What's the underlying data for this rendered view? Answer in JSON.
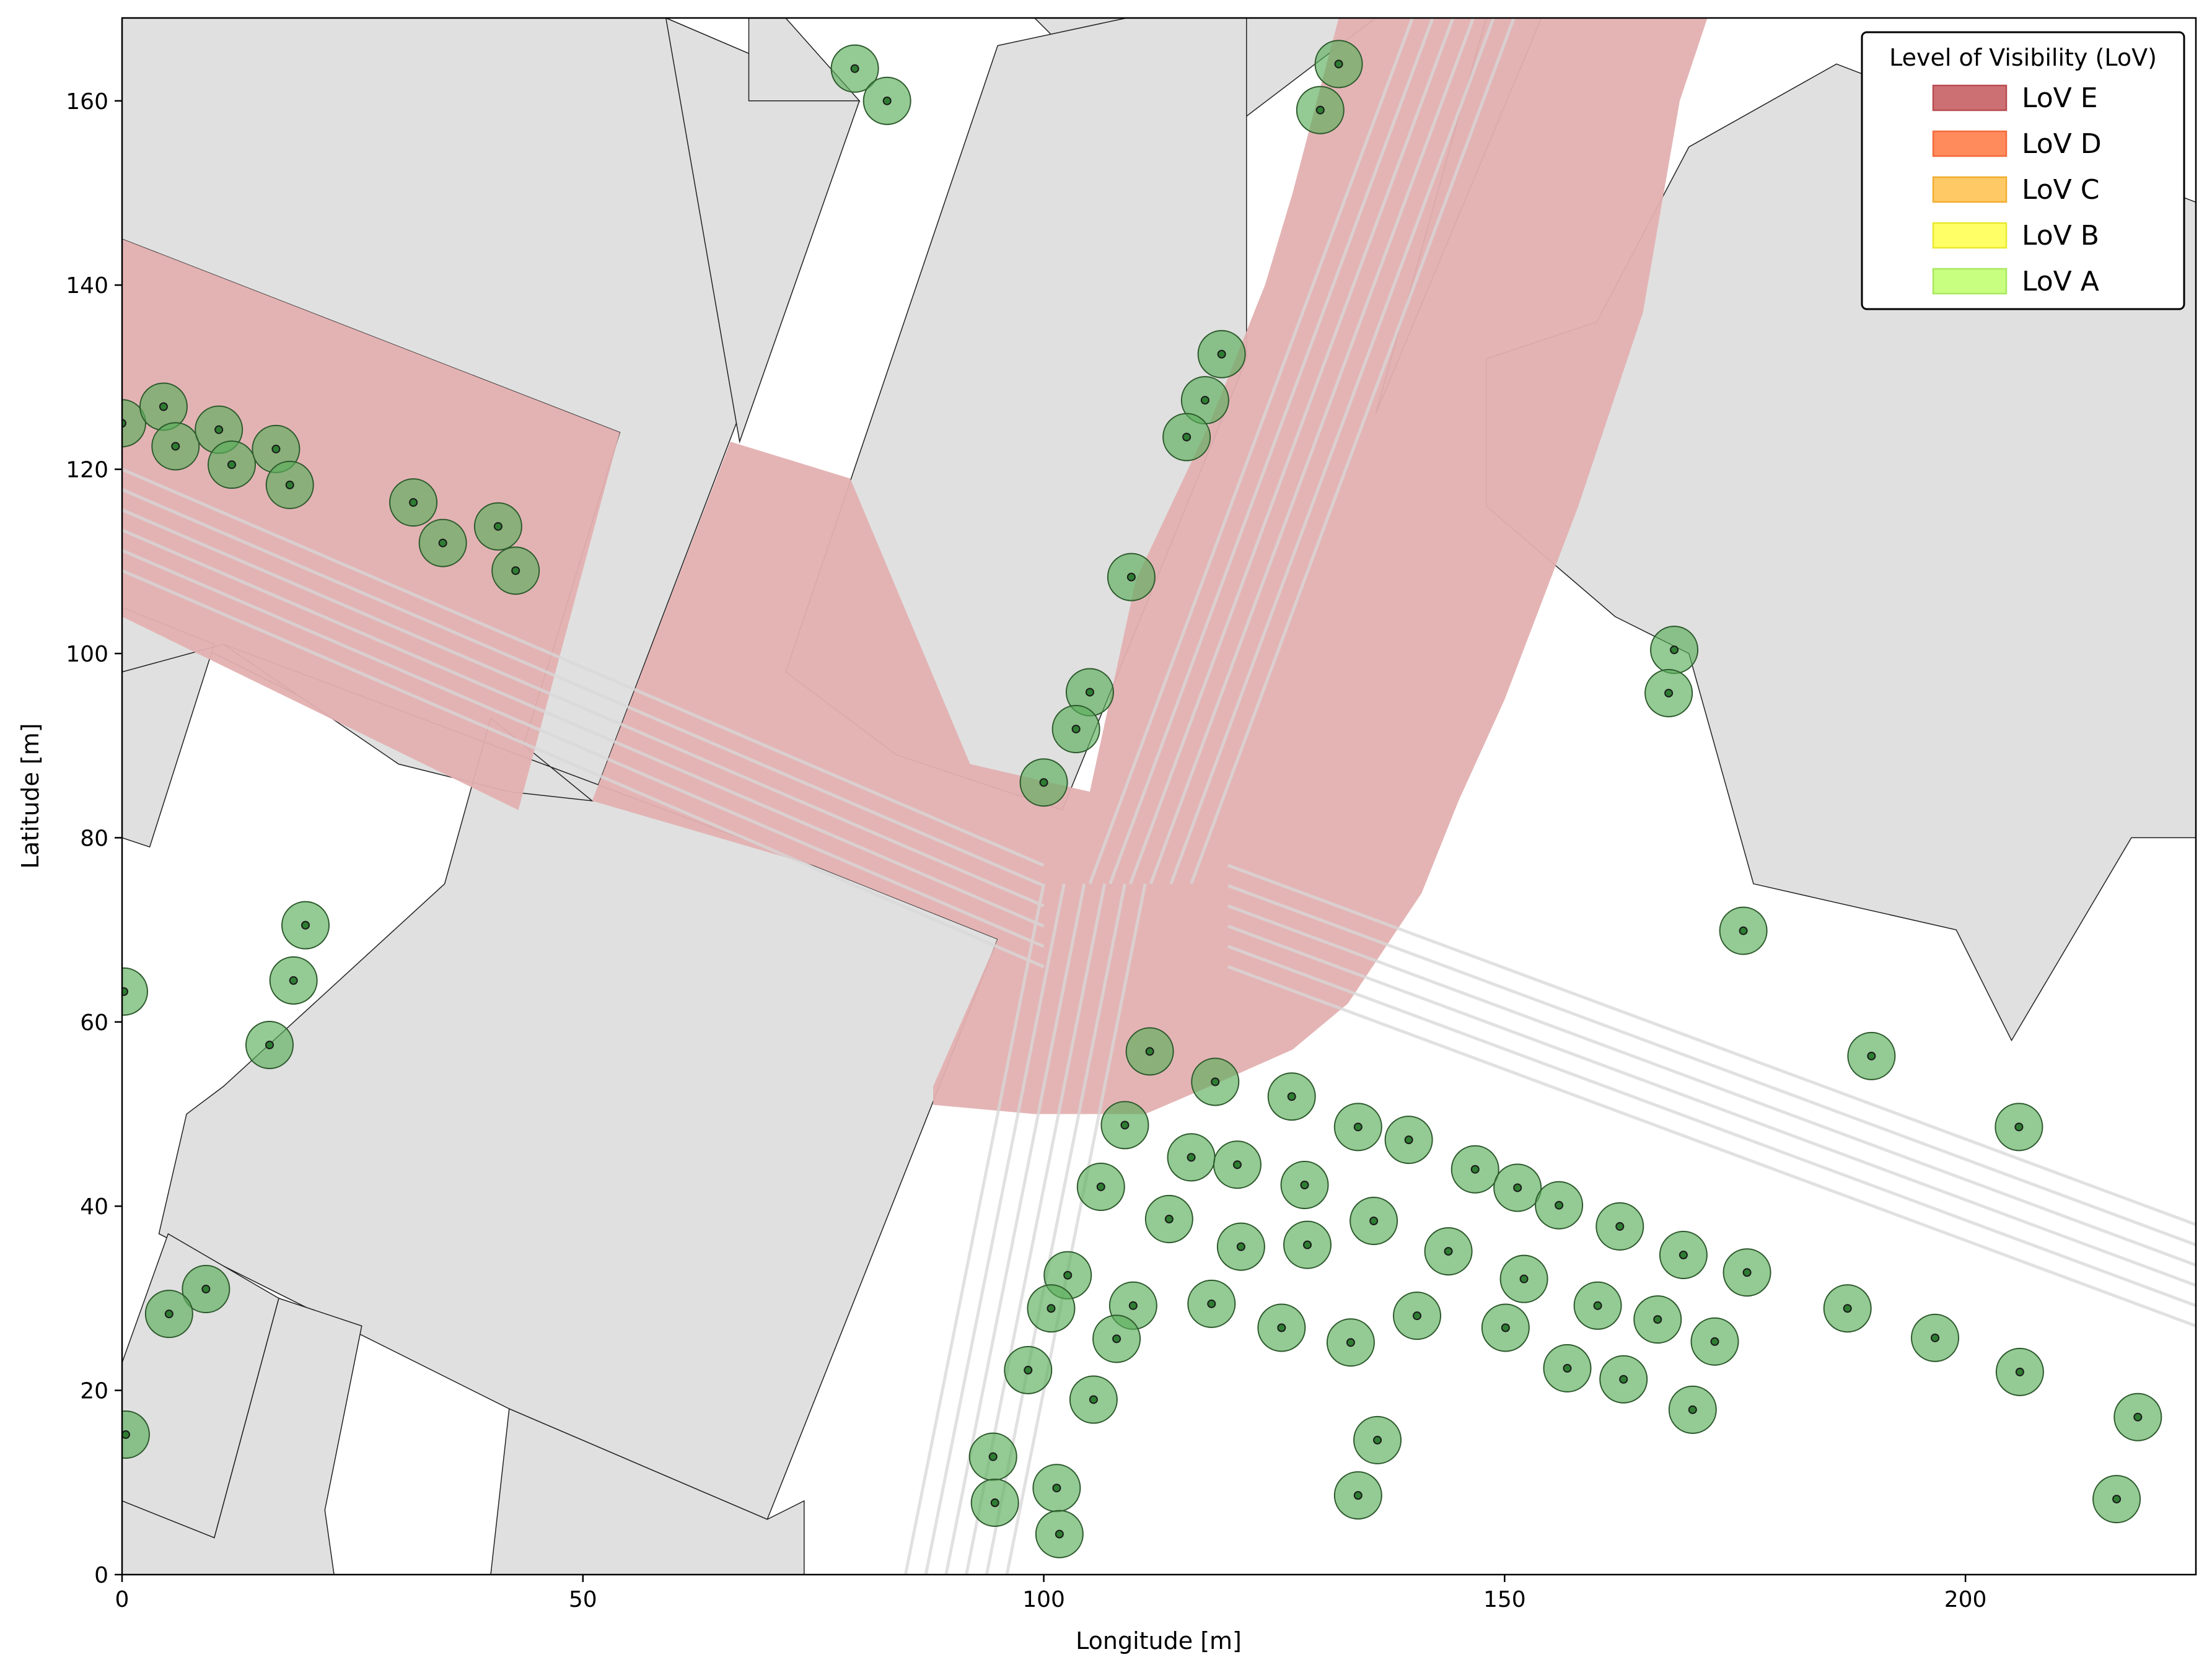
{
  "chart_data": {
    "type": "scatter",
    "title": "",
    "xlabel": "Longitude [m]",
    "ylabel": "Latitude [m]",
    "xlim": [
      0,
      225
    ],
    "ylim": [
      0,
      169
    ],
    "xticks": [
      0,
      50,
      100,
      150,
      200
    ],
    "yticks": [
      0,
      20,
      40,
      60,
      80,
      100,
      120,
      140,
      160
    ],
    "grid": false,
    "legend": {
      "title": "Level of Visibility (LoV)",
      "placement": "top-right",
      "entries": [
        {
          "label": "LoV E",
          "color": "#cd7074",
          "edge": "#b84c50"
        },
        {
          "label": "LoV D",
          "color": "#ff8a5c",
          "edge": "#f26a3c"
        },
        {
          "label": "LoV C",
          "color": "#ffc966",
          "edge": "#f0ad30"
        },
        {
          "label": "LoV B",
          "color": "#ffff66",
          "edge": "#e8e830"
        },
        {
          "label": "LoV A",
          "color": "#c8ff80",
          "edge": "#a8e860"
        }
      ]
    },
    "colors": {
      "building": "#e0e0e0",
      "lov_e_area": "#e3b0b1",
      "road_line": "#d8d8d8",
      "tree_fill": "#5aae5a",
      "tree_edge": "#2d5a2d",
      "tree_center": "#1a1a1a"
    },
    "buildings": [
      [
        [
          0,
          169
        ],
        [
          0,
          145
        ],
        [
          54,
          124
        ],
        [
          42,
          84
        ],
        [
          0,
          105
        ]
      ],
      [
        [
          0,
          169
        ],
        [
          0,
          145
        ],
        [
          54,
          124
        ],
        [
          42,
          85
        ],
        [
          51,
          84
        ],
        [
          80,
          160
        ],
        [
          59,
          169
        ]
      ],
      [
        [
          59,
          169
        ],
        [
          80,
          160
        ],
        [
          67,
          123
        ],
        [
          59,
          169
        ]
      ],
      [
        [
          99,
          169
        ],
        [
          115,
          153
        ],
        [
          136,
          169
        ]
      ],
      [
        [
          95,
          166
        ],
        [
          109,
          169
        ],
        [
          122,
          169
        ],
        [
          122,
          132
        ],
        [
          102,
          83
        ],
        [
          84,
          89
        ],
        [
          72,
          98
        ]
      ],
      [
        [
          0,
          105
        ],
        [
          10,
          101
        ],
        [
          3,
          79
        ],
        [
          0,
          80
        ]
      ],
      [
        [
          11,
          101
        ],
        [
          0,
          98
        ]
      ],
      [
        [
          11,
          101
        ],
        [
          75,
          77
        ],
        [
          95,
          69
        ],
        [
          70,
          6
        ],
        [
          42,
          18
        ],
        [
          4,
          37
        ],
        [
          7,
          50
        ],
        [
          11,
          53
        ],
        [
          35,
          75
        ],
        [
          40,
          93
        ],
        [
          51,
          84
        ],
        [
          42,
          85
        ],
        [
          30,
          88
        ],
        [
          11,
          101
        ]
      ],
      [
        [
          68,
          169
        ],
        [
          72,
          169
        ],
        [
          80,
          160
        ],
        [
          68,
          160
        ]
      ],
      [
        [
          148,
          169
        ],
        [
          154,
          169
        ],
        [
          136,
          126
        ]
      ],
      [
        [
          186,
          164
        ],
        [
          225,
          149
        ],
        [
          225,
          80
        ],
        [
          218,
          80
        ],
        [
          205,
          58
        ],
        [
          199,
          70
        ],
        [
          177,
          75
        ],
        [
          170,
          100
        ],
        [
          162,
          104
        ],
        [
          148,
          116
        ],
        [
          148,
          132
        ],
        [
          160,
          136
        ],
        [
          170,
          155
        ],
        [
          186,
          164
        ]
      ],
      [
        [
          0,
          58
        ],
        [
          0,
          10
        ],
        [
          10,
          4
        ],
        [
          17,
          30
        ],
        [
          26,
          27
        ],
        [
          22,
          7
        ],
        [
          23,
          0
        ],
        [
          40,
          0
        ],
        [
          42,
          18
        ],
        [
          70,
          6
        ],
        [
          74,
          8
        ],
        [
          74,
          0
        ],
        [
          0,
          0
        ]
      ],
      [
        [
          0,
          8
        ],
        [
          10,
          4
        ],
        [
          17,
          30
        ],
        [
          5,
          37
        ],
        [
          0,
          23
        ]
      ]
    ],
    "lov_e_areas": [
      [
        [
          0,
          145
        ],
        [
          54,
          124
        ],
        [
          43,
          83
        ],
        [
          0,
          104
        ]
      ],
      [
        [
          66,
          123
        ],
        [
          79,
          119
        ],
        [
          92,
          88
        ],
        [
          105,
          85
        ],
        [
          110,
          108
        ],
        [
          118,
          125
        ],
        [
          124,
          140
        ],
        [
          127,
          150
        ],
        [
          132,
          169
        ],
        [
          172,
          169
        ],
        [
          169,
          160
        ],
        [
          165,
          137
        ],
        [
          158,
          116
        ],
        [
          150,
          95
        ],
        [
          145,
          84
        ],
        [
          141,
          74
        ],
        [
          133,
          62
        ],
        [
          127,
          57
        ],
        [
          118,
          53
        ],
        [
          111,
          50
        ],
        [
          99,
          50
        ],
        [
          88,
          51
        ],
        [
          88,
          53
        ],
        [
          95,
          69
        ],
        [
          75,
          77
        ],
        [
          51,
          84
        ]
      ]
    ],
    "trees": [
      {
        "x": 79.5,
        "y": 163.5
      },
      {
        "x": 83,
        "y": 160
      },
      {
        "x": 132,
        "y": 164
      },
      {
        "x": 130,
        "y": 159
      },
      {
        "x": 0,
        "y": 125
      },
      {
        "x": 4.5,
        "y": 126.8
      },
      {
        "x": 5.8,
        "y": 122.5
      },
      {
        "x": 10.5,
        "y": 124.3
      },
      {
        "x": 11.9,
        "y": 120.5
      },
      {
        "x": 16.7,
        "y": 122.2
      },
      {
        "x": 18.2,
        "y": 118.3
      },
      {
        "x": 31.6,
        "y": 116.4
      },
      {
        "x": 34.8,
        "y": 112
      },
      {
        "x": 40.8,
        "y": 113.8
      },
      {
        "x": 42.7,
        "y": 109
      },
      {
        "x": 119.3,
        "y": 132.5
      },
      {
        "x": 117.5,
        "y": 127.5
      },
      {
        "x": 115.5,
        "y": 123.5
      },
      {
        "x": 109.5,
        "y": 108.3
      },
      {
        "x": 105,
        "y": 95.8
      },
      {
        "x": 103.5,
        "y": 91.8
      },
      {
        "x": 100,
        "y": 86
      },
      {
        "x": 168.4,
        "y": 100.4
      },
      {
        "x": 167.8,
        "y": 95.7
      },
      {
        "x": 175.9,
        "y": 69.9
      },
      {
        "x": 19.9,
        "y": 70.5
      },
      {
        "x": 18.6,
        "y": 64.5
      },
      {
        "x": 16,
        "y": 57.5
      },
      {
        "x": 0.2,
        "y": 63.3
      },
      {
        "x": 111.5,
        "y": 56.8
      },
      {
        "x": 118.6,
        "y": 53.5
      },
      {
        "x": 189.8,
        "y": 56.3
      },
      {
        "x": 205.8,
        "y": 48.6
      },
      {
        "x": 108.8,
        "y": 48.8
      },
      {
        "x": 126.9,
        "y": 51.9
      },
      {
        "x": 134.1,
        "y": 48.6
      },
      {
        "x": 139.6,
        "y": 47.2
      },
      {
        "x": 116,
        "y": 45.3
      },
      {
        "x": 121,
        "y": 44.5
      },
      {
        "x": 106.2,
        "y": 42.1
      },
      {
        "x": 128.3,
        "y": 42.3
      },
      {
        "x": 146.8,
        "y": 44
      },
      {
        "x": 151.4,
        "y": 42
      },
      {
        "x": 155.9,
        "y": 40.1
      },
      {
        "x": 113.6,
        "y": 38.6
      },
      {
        "x": 135.8,
        "y": 38.4
      },
      {
        "x": 162.5,
        "y": 37.8
      },
      {
        "x": 121.4,
        "y": 35.6
      },
      {
        "x": 128.6,
        "y": 35.8
      },
      {
        "x": 143.9,
        "y": 35.1
      },
      {
        "x": 169.4,
        "y": 34.7
      },
      {
        "x": 176.3,
        "y": 32.8
      },
      {
        "x": 102.6,
        "y": 32.5
      },
      {
        "x": 152.1,
        "y": 32.1
      },
      {
        "x": 9.1,
        "y": 31
      },
      {
        "x": 5.1,
        "y": 28.3
      },
      {
        "x": 100.8,
        "y": 28.9
      },
      {
        "x": 109.7,
        "y": 29.2
      },
      {
        "x": 118.2,
        "y": 29.4
      },
      {
        "x": 160.1,
        "y": 29.2
      },
      {
        "x": 187.2,
        "y": 28.9
      },
      {
        "x": 140.5,
        "y": 28.1
      },
      {
        "x": 166.6,
        "y": 27.7
      },
      {
        "x": 125.8,
        "y": 26.8
      },
      {
        "x": 150.1,
        "y": 26.8
      },
      {
        "x": 107.9,
        "y": 25.6
      },
      {
        "x": 133.3,
        "y": 25.2
      },
      {
        "x": 172.8,
        "y": 25.3
      },
      {
        "x": 196.7,
        "y": 25.7
      },
      {
        "x": 98.3,
        "y": 22.2
      },
      {
        "x": 156.8,
        "y": 22.4
      },
      {
        "x": 205.9,
        "y": 22
      },
      {
        "x": 162.9,
        "y": 21.2
      },
      {
        "x": 105.4,
        "y": 19
      },
      {
        "x": 170.4,
        "y": 17.9
      },
      {
        "x": 218.7,
        "y": 17.1
      },
      {
        "x": 0.4,
        "y": 15.2
      },
      {
        "x": 136.2,
        "y": 14.6
      },
      {
        "x": 94.5,
        "y": 12.8
      },
      {
        "x": 101.4,
        "y": 9.4
      },
      {
        "x": 134.1,
        "y": 8.6
      },
      {
        "x": 94.7,
        "y": 7.8
      },
      {
        "x": 216.4,
        "y": 8.2
      },
      {
        "x": 101.7,
        "y": 4.4
      }
    ]
  }
}
